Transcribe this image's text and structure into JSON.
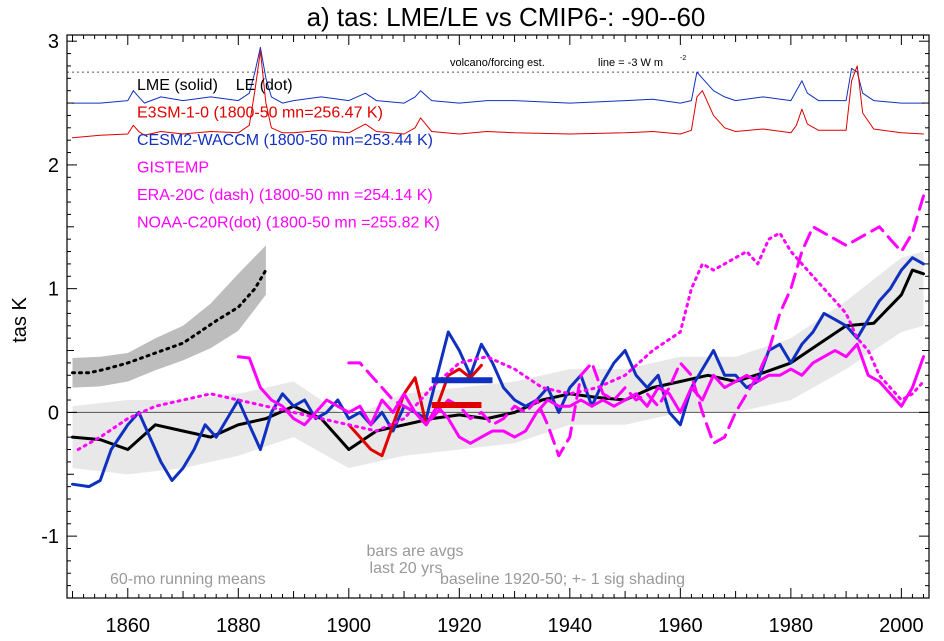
{
  "chart_data": {
    "type": "line",
    "title": "a) tas: LME/LE vs CMIP6-: -90--60",
    "ylabel": "tas K",
    "xlabel": "",
    "xlim": [
      1849,
      2005
    ],
    "ylim": [
      -1.5,
      3.05
    ],
    "xticks": [
      1860,
      1880,
      1900,
      1920,
      1940,
      1960,
      1980,
      2000
    ],
    "yticks": [
      -1,
      0,
      1,
      2,
      3
    ],
    "grid": false,
    "legend_position": "top-left",
    "annotations": {
      "volcano": "volcano/forcing est.",
      "forcing_line": "line = -3 W m",
      "forcing_line_sup": "-2",
      "bars1": "bars are avgs",
      "bars2": "last 20 yrs",
      "runmean": "60-mo running means",
      "baseline": "baseline 1920-50; +- 1 sig shading"
    },
    "legend": [
      {
        "label": "LME (solid)    LE (dot)",
        "color": "#000000"
      },
      {
        "label": "E3SM-1-0 (1800-50 mn=256.47 K)",
        "color": "#e00000"
      },
      {
        "label": "CESM2-WACCM (1800-50 mn=253.44 K)",
        "color": "#1030c0"
      },
      {
        "label": "GISTEMP",
        "color": "#ff00ff"
      },
      {
        "label": "ERA-20C (dash) (1800-50 mn =254.14 K)",
        "color": "#ff00ff"
      },
      {
        "label": "NOAA-C20R(dot) (1800-50 mn =255.82 K)",
        "color": "#ff00ff"
      }
    ],
    "forcing_reference_level": 2.75,
    "series": [
      {
        "name": "CESM2-WACCM forcing",
        "color": "#1030c0",
        "style": "thin",
        "x": [
          1850,
          1855,
          1860,
          1861,
          1862,
          1863,
          1866,
          1870,
          1875,
          1880,
          1882,
          1883,
          1884,
          1885,
          1886,
          1888,
          1890,
          1895,
          1900,
          1903,
          1905,
          1910,
          1912,
          1913,
          1915,
          1920,
          1925,
          1930,
          1940,
          1950,
          1955,
          1960,
          1962,
          1963,
          1964,
          1966,
          1968,
          1970,
          1975,
          1980,
          1981,
          1982,
          1983,
          1985,
          1990,
          1991,
          1992,
          1993,
          1995,
          2000,
          2004
        ],
        "y": [
          2.5,
          2.5,
          2.52,
          2.6,
          2.55,
          2.5,
          2.55,
          2.52,
          2.55,
          2.52,
          2.58,
          2.75,
          2.95,
          2.7,
          2.55,
          2.5,
          2.52,
          2.55,
          2.52,
          2.58,
          2.52,
          2.5,
          2.55,
          2.6,
          2.52,
          2.5,
          2.52,
          2.52,
          2.5,
          2.52,
          2.53,
          2.5,
          2.52,
          2.75,
          2.7,
          2.6,
          2.55,
          2.52,
          2.55,
          2.52,
          2.6,
          2.68,
          2.58,
          2.52,
          2.52,
          2.78,
          2.75,
          2.58,
          2.52,
          2.5,
          2.5
        ]
      },
      {
        "name": "E3SM-1-0 forcing",
        "color": "#e00000",
        "style": "thin",
        "x": [
          1850,
          1855,
          1860,
          1861,
          1862,
          1863,
          1866,
          1870,
          1875,
          1880,
          1882,
          1883,
          1884,
          1885,
          1886,
          1888,
          1890,
          1895,
          1900,
          1903,
          1905,
          1910,
          1912,
          1913,
          1915,
          1920,
          1925,
          1930,
          1940,
          1950,
          1955,
          1960,
          1962,
          1963,
          1964,
          1966,
          1968,
          1970,
          1975,
          1980,
          1981,
          1982,
          1983,
          1985,
          1990,
          1991,
          1992,
          1993,
          1995,
          2000,
          2004
        ],
        "y": [
          2.22,
          2.24,
          2.25,
          2.32,
          2.27,
          2.24,
          2.27,
          2.25,
          2.27,
          2.26,
          2.32,
          2.6,
          2.92,
          2.5,
          2.3,
          2.26,
          2.26,
          2.28,
          2.26,
          2.33,
          2.27,
          2.25,
          2.3,
          2.38,
          2.27,
          2.25,
          2.27,
          2.26,
          2.25,
          2.26,
          2.27,
          2.25,
          2.28,
          2.55,
          2.6,
          2.4,
          2.3,
          2.27,
          2.29,
          2.26,
          2.32,
          2.45,
          2.33,
          2.28,
          2.28,
          2.68,
          2.8,
          2.42,
          2.29,
          2.26,
          2.25
        ]
      },
      {
        "name": "LE ensemble mean",
        "color": "#000000",
        "style": "dot",
        "x": [
          1850,
          1853,
          1856,
          1860,
          1865,
          1870,
          1873,
          1876,
          1880,
          1883,
          1885
        ],
        "y": [
          0.32,
          0.32,
          0.35,
          0.4,
          0.48,
          0.56,
          0.65,
          0.74,
          0.85,
          1.0,
          1.15
        ]
      },
      {
        "name": "LME ensemble mean",
        "color": "#000000",
        "style": "solid",
        "x": [
          1850,
          1855,
          1860,
          1865,
          1870,
          1875,
          1880,
          1885,
          1890,
          1895,
          1898,
          1900,
          1905,
          1910,
          1915,
          1920,
          1925,
          1930,
          1935,
          1940,
          1945,
          1950,
          1955,
          1960,
          1965,
          1970,
          1975,
          1980,
          1985,
          1990,
          1995,
          2000,
          2002,
          2004
        ],
        "y": [
          -0.2,
          -0.22,
          -0.3,
          -0.1,
          -0.15,
          -0.2,
          -0.1,
          -0.05,
          0.05,
          -0.05,
          -0.2,
          -0.3,
          -0.15,
          -0.1,
          -0.05,
          -0.02,
          -0.05,
          0.0,
          0.1,
          0.15,
          0.12,
          0.1,
          0.2,
          0.25,
          0.3,
          0.25,
          0.32,
          0.4,
          0.55,
          0.7,
          0.72,
          0.95,
          1.15,
          1.12
        ]
      },
      {
        "name": "CESM2-WACCM",
        "color": "#1030c0",
        "style": "solid",
        "x": [
          1850,
          1853,
          1855,
          1857,
          1860,
          1862,
          1864,
          1866,
          1868,
          1870,
          1872,
          1874,
          1876,
          1878,
          1880,
          1882,
          1884,
          1886,
          1888,
          1890,
          1892,
          1894,
          1896,
          1898,
          1900,
          1902,
          1904,
          1906,
          1908,
          1910,
          1912,
          1914,
          1916,
          1918,
          1920,
          1922,
          1924,
          1926,
          1928,
          1930,
          1932,
          1934,
          1936,
          1938,
          1940,
          1942,
          1944,
          1946,
          1948,
          1950,
          1952,
          1954,
          1956,
          1958,
          1960,
          1962,
          1964,
          1966,
          1968,
          1970,
          1972,
          1974,
          1976,
          1978,
          1980,
          1982,
          1984,
          1986,
          1988,
          1990,
          1992,
          1994,
          1996,
          1998,
          2000,
          2002,
          2004
        ],
        "y": [
          -0.58,
          -0.6,
          -0.55,
          -0.3,
          -0.1,
          0.0,
          -0.2,
          -0.4,
          -0.55,
          -0.45,
          -0.3,
          -0.1,
          -0.2,
          -0.05,
          0.1,
          -0.1,
          -0.3,
          0.0,
          0.15,
          0.05,
          0.1,
          -0.05,
          0.0,
          0.1,
          -0.05,
          0.0,
          -0.1,
          0.0,
          -0.15,
          0.05,
          0.0,
          -0.05,
          0.3,
          0.65,
          0.5,
          0.3,
          0.55,
          0.4,
          0.2,
          0.1,
          0.05,
          0.1,
          0.2,
          0.0,
          0.2,
          0.3,
          0.05,
          0.25,
          0.4,
          0.5,
          0.3,
          0.2,
          0.3,
          0.0,
          -0.1,
          0.2,
          0.35,
          0.5,
          0.3,
          0.3,
          0.2,
          0.25,
          0.5,
          0.55,
          0.4,
          0.55,
          0.65,
          0.8,
          0.75,
          0.7,
          0.6,
          0.75,
          0.9,
          1.0,
          1.15,
          1.25,
          1.2
        ]
      },
      {
        "name": "E3SM-1-0",
        "color": "#e00000",
        "style": "solid",
        "x": [
          1900,
          1902,
          1904,
          1906,
          1908,
          1910,
          1912,
          1913,
          1914,
          1916,
          1918,
          1920,
          1922,
          1924
        ],
        "y": [
          -0.1,
          -0.2,
          -0.3,
          -0.35,
          -0.1,
          0.15,
          0.28,
          0.1,
          -0.1,
          0.05,
          0.3,
          0.35,
          0.28,
          0.38
        ]
      },
      {
        "name": "GISTEMP",
        "color": "#ff00ff",
        "style": "solid",
        "x": [
          1880,
          1882,
          1884,
          1886,
          1888,
          1890,
          1892,
          1894,
          1896,
          1898,
          1900,
          1902,
          1904,
          1906,
          1908,
          1910,
          1912,
          1914,
          1916,
          1918,
          1920,
          1922,
          1924,
          1926,
          1928,
          1930,
          1932,
          1934,
          1936,
          1938,
          1940,
          1942,
          1944,
          1946,
          1948,
          1950,
          1952,
          1954,
          1956,
          1958,
          1960,
          1962,
          1964,
          1966,
          1968,
          1970,
          1972,
          1974,
          1976,
          1978,
          1980,
          1982,
          1984,
          1986,
          1988,
          1990,
          1992,
          1994,
          1996,
          1998,
          2000,
          2002,
          2004
        ],
        "y": [
          0.45,
          0.44,
          0.2,
          0.1,
          0.05,
          -0.05,
          -0.1,
          0.0,
          0.1,
          0.05,
          0.0,
          0.05,
          -0.1,
          0.1,
          0.0,
          0.15,
          0.0,
          -0.1,
          0.05,
          -0.05,
          -0.2,
          -0.25,
          -0.2,
          -0.15,
          -0.15,
          -0.2,
          -0.15,
          0.0,
          0.1,
          0.05,
          0.05,
          0.1,
          0.05,
          0.1,
          0.05,
          0.1,
          0.15,
          0.05,
          0.2,
          0.15,
          0.0,
          0.2,
          0.1,
          0.3,
          0.2,
          0.25,
          0.3,
          0.25,
          0.3,
          0.3,
          0.35,
          0.3,
          0.4,
          0.45,
          0.5,
          0.45,
          0.55,
          0.3,
          0.25,
          0.15,
          0.05,
          0.2,
          0.45
        ]
      },
      {
        "name": "ERA-20C",
        "color": "#ff00ff",
        "style": "dash",
        "x": [
          1900,
          1902,
          1904,
          1906,
          1908,
          1910,
          1912,
          1914,
          1916,
          1918,
          1920,
          1922,
          1924,
          1926,
          1928,
          1930,
          1932,
          1934,
          1936,
          1938,
          1940,
          1942,
          1944,
          1946,
          1948,
          1950,
          1952,
          1954,
          1956,
          1958,
          1960,
          1962,
          1964,
          1966,
          1968,
          1970,
          1972,
          1974,
          1976,
          1978,
          1980,
          1982,
          1984,
          1986,
          1988,
          1990,
          1992,
          1994,
          1996,
          1998,
          2000,
          2002,
          2004
        ],
        "y": [
          0.4,
          0.4,
          0.3,
          0.2,
          0.1,
          0.05,
          0.0,
          -0.1,
          0.0,
          0.1,
          0.05,
          -0.05,
          0.0,
          -0.1,
          -0.05,
          0.05,
          0.0,
          0.1,
          -0.1,
          -0.35,
          -0.2,
          0.3,
          0.4,
          0.15,
          0.1,
          0.2,
          0.1,
          0.15,
          0.05,
          0.2,
          0.4,
          0.3,
          0.0,
          -0.25,
          -0.2,
          0.0,
          0.15,
          0.3,
          0.5,
          0.8,
          1.0,
          1.3,
          1.5,
          1.45,
          1.4,
          1.35,
          1.4,
          1.45,
          1.5,
          1.4,
          1.3,
          1.45,
          1.75
        ]
      },
      {
        "name": "NOAA-C20R",
        "color": "#ff00ff",
        "style": "dot",
        "x": [
          1851,
          1855,
          1860,
          1865,
          1870,
          1875,
          1880,
          1885,
          1890,
          1895,
          1900,
          1905,
          1910,
          1915,
          1920,
          1925,
          1930,
          1935,
          1940,
          1945,
          1950,
          1955,
          1960,
          1962,
          1964,
          1966,
          1968,
          1970,
          1972,
          1974,
          1976,
          1978,
          1980,
          1982,
          1984,
          1986,
          1988,
          1990,
          1992,
          1994,
          1996,
          1998,
          2000,
          2002,
          2004
        ],
        "y": [
          -0.3,
          -0.2,
          -0.05,
          0.05,
          0.1,
          0.15,
          0.1,
          0.05,
          0.0,
          -0.05,
          -0.1,
          -0.15,
          -0.05,
          0.2,
          0.4,
          0.45,
          0.35,
          0.2,
          0.15,
          0.2,
          0.3,
          0.5,
          0.65,
          1.0,
          1.2,
          1.15,
          1.2,
          1.25,
          1.3,
          1.2,
          1.4,
          1.45,
          1.3,
          1.2,
          1.1,
          1.0,
          0.9,
          0.8,
          0.6,
          0.5,
          0.3,
          0.2,
          0.1,
          0.15,
          0.25
        ]
      }
    ],
    "ensemble_spread": [
      {
        "name": "LE spread",
        "color": "#bdbdbd",
        "x": [
          1850,
          1855,
          1860,
          1865,
          1870,
          1875,
          1880,
          1885
        ],
        "lower": [
          0.2,
          0.21,
          0.25,
          0.34,
          0.42,
          0.52,
          0.66,
          0.95
        ],
        "upper": [
          0.44,
          0.45,
          0.48,
          0.6,
          0.7,
          0.88,
          1.12,
          1.35
        ]
      },
      {
        "name": "LME spread",
        "color": "#e8e8e8",
        "x": [
          1850,
          1860,
          1870,
          1880,
          1890,
          1900,
          1910,
          1920,
          1930,
          1940,
          1950,
          1960,
          1970,
          1980,
          1990,
          2000,
          2004
        ],
        "lower": [
          -0.45,
          -0.5,
          -0.45,
          -0.35,
          -0.2,
          -0.45,
          -0.35,
          -0.3,
          -0.25,
          -0.1,
          -0.1,
          0.0,
          0.0,
          0.1,
          0.35,
          0.65,
          0.7
        ],
        "upper": [
          0.05,
          0.1,
          0.1,
          0.15,
          0.25,
          -0.05,
          0.15,
          0.2,
          0.25,
          0.35,
          0.35,
          0.45,
          0.45,
          0.6,
          0.9,
          1.25,
          1.3
        ]
      }
    ],
    "bars": [
      {
        "series": "CESM2-WACCM",
        "color": "#1030c0",
        "x0": 1915,
        "x1": 1926,
        "value": 0.26
      },
      {
        "series": "E3SM-1-0",
        "color": "#e00000",
        "x0": 1915,
        "x1": 1924,
        "value": 0.06
      }
    ]
  }
}
